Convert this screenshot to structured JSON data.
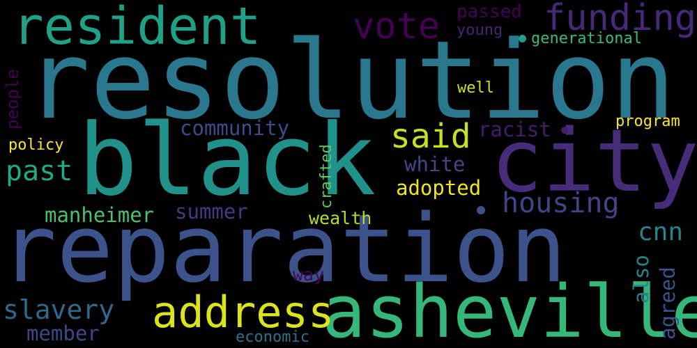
{
  "words": [
    {
      "text": "resolution",
      "color": "#2a788e"
    },
    {
      "text": "black",
      "color": "#21918c"
    },
    {
      "text": "reparation",
      "color": "#3b528b"
    },
    {
      "text": "city",
      "color": "#472c7a"
    },
    {
      "text": "asheville",
      "color": "#35b779"
    },
    {
      "text": "resident",
      "color": "#1fa088"
    },
    {
      "text": "funding",
      "color": "#482878"
    },
    {
      "text": "vote",
      "color": "#440154"
    },
    {
      "text": "address",
      "color": "#dde318"
    },
    {
      "text": "said",
      "color": "#c8e020"
    },
    {
      "text": "housing",
      "color": "#414487"
    },
    {
      "text": "past",
      "color": "#22a884"
    },
    {
      "text": "slavery",
      "color": "#31688e"
    },
    {
      "text": "passed",
      "color": "#440154"
    },
    {
      "text": "young",
      "color": "#482475"
    },
    {
      "text": "generational",
      "color": "#3bbb75"
    },
    {
      "text": "community",
      "color": "#3e4a89"
    },
    {
      "text": "well",
      "color": "#d0e11c"
    },
    {
      "text": "racist",
      "color": "#481a6c"
    },
    {
      "text": "program",
      "color": "#fde725"
    },
    {
      "text": "policy",
      "color": "#fde725"
    },
    {
      "text": "white",
      "color": "#404688"
    },
    {
      "text": "adopted",
      "color": "#f1e51d"
    },
    {
      "text": "manheimer",
      "color": "#4ac16d"
    },
    {
      "text": "summer",
      "color": "#443a83"
    },
    {
      "text": "wealth",
      "color": "#b5de2b"
    },
    {
      "text": "cnn",
      "color": "#25858e"
    },
    {
      "text": "member",
      "color": "#3e4989"
    },
    {
      "text": "economic",
      "color": "#2c728e"
    },
    {
      "text": "way",
      "color": "#46075a"
    },
    {
      "text": "people",
      "color": "#440154"
    },
    {
      "text": "crafted",
      "color": "#5ec962"
    },
    {
      "text": "also",
      "color": "#26828e"
    },
    {
      "text": "agreed",
      "color": "#3b528b"
    }
  ]
}
